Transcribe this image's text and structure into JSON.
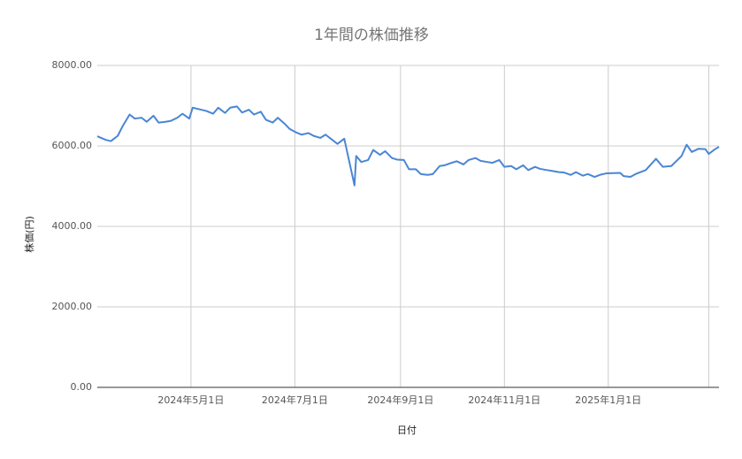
{
  "chart_data": {
    "type": "line",
    "title": "1年間の株価推移",
    "x_label": "日付",
    "y_label": "株価(円)",
    "color": "#4a86d4",
    "grid": true,
    "xlim": [
      "2024-03-07",
      "2025-03-07"
    ],
    "xticks": [
      {
        "value": "2024-05-01",
        "label": "2024年5月1日"
      },
      {
        "value": "2024-07-01",
        "label": "2024年7月1日"
      },
      {
        "value": "2024-09-01",
        "label": "2024年9月1日"
      },
      {
        "value": "2024-11-01",
        "label": "2024年11月1日"
      },
      {
        "value": "2025-01-01",
        "label": "2025年1月1日"
      },
      {
        "value": "2025-03-01",
        "label": null
      }
    ],
    "ylim": [
      0,
      8000
    ],
    "yticks": [
      {
        "value": 0,
        "label": "0.00"
      },
      {
        "value": 2000,
        "label": "2000.00"
      },
      {
        "value": 4000,
        "label": "4000.00"
      },
      {
        "value": 6000,
        "label": "6000.00"
      },
      {
        "value": 8000,
        "label": "8000.00"
      }
    ],
    "x": [
      "2024-03-07",
      "2024-03-12",
      "2024-03-15",
      "2024-03-19",
      "2024-03-22",
      "2024-03-26",
      "2024-03-29",
      "2024-04-02",
      "2024-04-05",
      "2024-04-09",
      "2024-04-12",
      "2024-04-16",
      "2024-04-19",
      "2024-04-23",
      "2024-04-26",
      "2024-04-30",
      "2024-05-02",
      "2024-05-07",
      "2024-05-10",
      "2024-05-14",
      "2024-05-17",
      "2024-05-21",
      "2024-05-24",
      "2024-05-28",
      "2024-05-31",
      "2024-06-04",
      "2024-06-07",
      "2024-06-11",
      "2024-06-14",
      "2024-06-18",
      "2024-06-21",
      "2024-06-25",
      "2024-06-28",
      "2024-07-02",
      "2024-07-05",
      "2024-07-09",
      "2024-07-12",
      "2024-07-16",
      "2024-07-19",
      "2024-07-23",
      "2024-07-26",
      "2024-07-30",
      "2024-08-02",
      "2024-08-05",
      "2024-08-06",
      "2024-08-09",
      "2024-08-13",
      "2024-08-16",
      "2024-08-20",
      "2024-08-23",
      "2024-08-27",
      "2024-08-30",
      "2024-09-03",
      "2024-09-06",
      "2024-09-10",
      "2024-09-13",
      "2024-09-17",
      "2024-09-20",
      "2024-09-24",
      "2024-09-27",
      "2024-10-01",
      "2024-10-04",
      "2024-10-08",
      "2024-10-11",
      "2024-10-15",
      "2024-10-18",
      "2024-10-22",
      "2024-10-25",
      "2024-10-29",
      "2024-11-01",
      "2024-11-05",
      "2024-11-08",
      "2024-11-12",
      "2024-11-15",
      "2024-11-19",
      "2024-11-22",
      "2024-11-26",
      "2024-11-29",
      "2024-12-03",
      "2024-12-06",
      "2024-12-10",
      "2024-12-13",
      "2024-12-17",
      "2024-12-20",
      "2024-12-24",
      "2024-12-27",
      "2024-12-31",
      "2025-01-08",
      "2025-01-10",
      "2025-01-14",
      "2025-01-17",
      "2025-01-23",
      "2025-01-29",
      "2025-02-02",
      "2025-02-07",
      "2025-02-13",
      "2025-02-16",
      "2025-02-19",
      "2025-02-23",
      "2025-02-27",
      "2025-03-01",
      "2025-03-04",
      "2025-03-07"
    ],
    "values": [
      6240,
      6150,
      6120,
      6250,
      6500,
      6780,
      6680,
      6700,
      6600,
      6750,
      6580,
      6600,
      6620,
      6700,
      6800,
      6680,
      6950,
      6900,
      6870,
      6800,
      6950,
      6820,
      6950,
      6980,
      6830,
      6900,
      6780,
      6850,
      6650,
      6580,
      6700,
      6550,
      6420,
      6330,
      6280,
      6320,
      6250,
      6200,
      6280,
      6150,
      6050,
      6180,
      5600,
      5020,
      5750,
      5600,
      5650,
      5900,
      5780,
      5870,
      5700,
      5660,
      5650,
      5420,
      5420,
      5300,
      5280,
      5300,
      5500,
      5520,
      5580,
      5620,
      5540,
      5650,
      5700,
      5630,
      5600,
      5580,
      5650,
      5480,
      5500,
      5420,
      5520,
      5400,
      5480,
      5430,
      5400,
      5380,
      5350,
      5340,
      5280,
      5350,
      5260,
      5300,
      5230,
      5280,
      5320,
      5330,
      5250,
      5230,
      5300,
      5400,
      5680,
      5480,
      5500,
      5750,
      6030,
      5850,
      5930,
      5920,
      5800,
      5900,
      5980
    ]
  }
}
